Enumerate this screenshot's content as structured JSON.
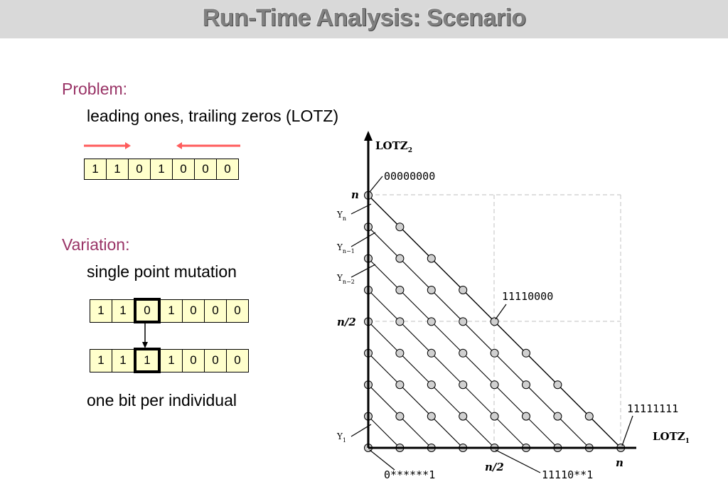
{
  "title": "Run-Time Analysis: Scenario",
  "problem": {
    "heading": "Problem:",
    "description": "leading ones, trailing zeros (LOTZ)",
    "bits": [
      "1",
      "1",
      "0",
      "1",
      "0",
      "0",
      "0"
    ]
  },
  "variation": {
    "heading": "Variation:",
    "description": "single point mutation",
    "bits_before": [
      "1",
      "1",
      "0",
      "1",
      "0",
      "0",
      "0"
    ],
    "bits_after": [
      "1",
      "1",
      "1",
      "1",
      "0",
      "0",
      "0"
    ],
    "note": "one bit per individual"
  },
  "diagram": {
    "y_axis": {
      "main": "LOTZ",
      "sub": "2"
    },
    "x_axis": {
      "main": "LOTZ",
      "sub": "1"
    },
    "tick_n": "n",
    "tick_half_y": "n/2",
    "tick_half_x": "n/2",
    "tick_n_x": "n",
    "labels": {
      "top": "00000000",
      "mid": "11110000",
      "right": "11111111",
      "bottom_left": "0******1",
      "bottom_mid": "11110**1"
    },
    "front_labels": [
      {
        "main": "Y",
        "sub": "n"
      },
      {
        "main": "Y",
        "sub": "n−1"
      },
      {
        "main": "Y",
        "sub": "n−2"
      },
      {
        "main": "Y",
        "sub": "1"
      }
    ]
  }
}
